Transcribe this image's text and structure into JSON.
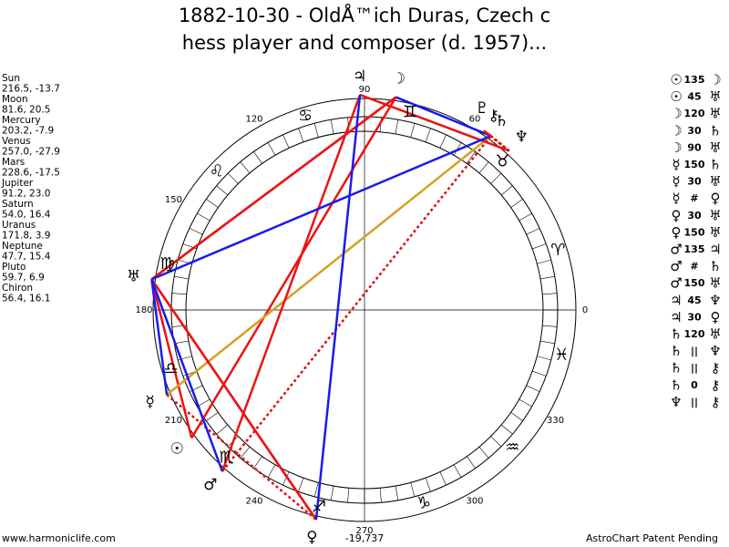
{
  "header": {
    "title_lines": [
      "1882-10-30 - OldÅ™ich Duras, Czech c",
      "hess player and composer (d. 1957)..."
    ]
  },
  "planets": [
    {
      "name": "Sun",
      "symbol": "☉",
      "coords": "216.5, -13.7"
    },
    {
      "name": "Moon",
      "symbol": "☽",
      "coords": "81.6, 20.5"
    },
    {
      "name": "Mercury",
      "symbol": "☿",
      "coords": "203.2, -7.9"
    },
    {
      "name": "Venus",
      "symbol": "♀",
      "coords": "257.0, -27.9"
    },
    {
      "name": "Mars",
      "symbol": "♂",
      "coords": "228.6, -17.5"
    },
    {
      "name": "Jupiter",
      "symbol": "♃",
      "coords": "91.2, 23.0"
    },
    {
      "name": "Saturn",
      "symbol": "♄",
      "coords": "54.0, 16.4"
    },
    {
      "name": "Uranus",
      "symbol": "♅",
      "coords": "171.8, 3.9"
    },
    {
      "name": "Neptune",
      "symbol": "♆",
      "coords": "47.7, 15.4"
    },
    {
      "name": "Pluto",
      "symbol": "♇",
      "coords": "59.7, 6.9"
    },
    {
      "name": "Chiron",
      "symbol": "⚷",
      "coords": "56.4, 16.1"
    }
  ],
  "aspects": [
    {
      "from": "☉",
      "aspect": "135",
      "to": "☽"
    },
    {
      "from": "☉",
      "aspect": "45",
      "to": "♅"
    },
    {
      "from": "☽",
      "aspect": "120",
      "to": "♅"
    },
    {
      "from": "☽",
      "aspect": "30",
      "to": "♄"
    },
    {
      "from": "☽",
      "aspect": "90",
      "to": "♅"
    },
    {
      "from": "☿",
      "aspect": "150",
      "to": "♄"
    },
    {
      "from": "☿",
      "aspect": "30",
      "to": "♅"
    },
    {
      "from": "☿",
      "aspect": "#",
      "to": "♀"
    },
    {
      "from": "♀",
      "aspect": "30",
      "to": "♅"
    },
    {
      "from": "♀",
      "aspect": "150",
      "to": "♅"
    },
    {
      "from": "♂",
      "aspect": "135",
      "to": "♃"
    },
    {
      "from": "♂",
      "aspect": "#",
      "to": "♄"
    },
    {
      "from": "♂",
      "aspect": "150",
      "to": "♅"
    },
    {
      "from": "♃",
      "aspect": "45",
      "to": "♆"
    },
    {
      "from": "♃",
      "aspect": "30",
      "to": "♀"
    },
    {
      "from": "♄",
      "aspect": "120",
      "to": "♅"
    },
    {
      "from": "♄",
      "aspect": "||",
      "to": "♆"
    },
    {
      "from": "♄",
      "aspect": "||",
      "to": "⚷"
    },
    {
      "from": "♄",
      "aspect": "0",
      "to": "⚷"
    },
    {
      "from": "♆",
      "aspect": "||",
      "to": "⚷"
    }
  ],
  "signs": [
    "♈",
    "♉",
    "♊",
    "♋",
    "♌",
    "♍",
    "♎",
    "♏",
    "♐",
    "♑",
    "♒",
    "♓"
  ],
  "degree_labels": [
    "0",
    "60",
    "90",
    "120",
    "150",
    "180",
    "210",
    "240",
    "270",
    "300",
    "330"
  ],
  "footer": {
    "left": "www.harmoniclife.com",
    "center": "-19,737",
    "right": "AstroChart Patent Pending"
  }
}
